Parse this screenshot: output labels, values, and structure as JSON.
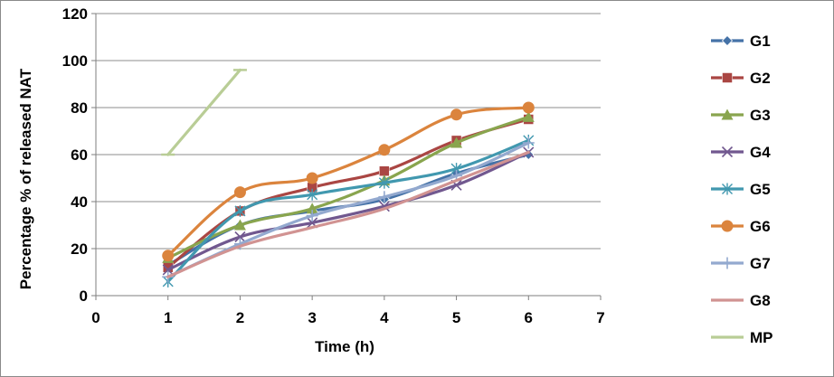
{
  "chart_data": {
    "type": "line",
    "title": "",
    "xlabel": "Time (h)",
    "ylabel": "Percentage % of released NAT",
    "xlim": [
      0,
      7
    ],
    "ylim": [
      0,
      120
    ],
    "xticks": [
      "0",
      "1",
      "2",
      "3",
      "4",
      "5",
      "6",
      "7"
    ],
    "yticks": [
      "0",
      "20",
      "40",
      "60",
      "80",
      "100",
      "120"
    ],
    "grid": "horizontal",
    "legend_position": "right",
    "series": [
      {
        "name": "G1",
        "color": "#4572A7",
        "marker": "diamond",
        "x": [
          1,
          2,
          3,
          4,
          5,
          6
        ],
        "y": [
          13,
          30,
          36,
          41,
          52,
          60
        ]
      },
      {
        "name": "G2",
        "color": "#AA4643",
        "marker": "square",
        "x": [
          1,
          2,
          3,
          4,
          5,
          6
        ],
        "y": [
          12,
          36,
          46,
          53,
          66,
          75
        ]
      },
      {
        "name": "G3",
        "color": "#89A54E",
        "marker": "triangle",
        "x": [
          1,
          2,
          3,
          4,
          5,
          6
        ],
        "y": [
          16,
          30,
          37,
          49,
          65,
          76
        ]
      },
      {
        "name": "G4",
        "color": "#71588F",
        "marker": "x",
        "x": [
          1,
          2,
          3,
          4,
          5,
          6
        ],
        "y": [
          11,
          25,
          31,
          38,
          47,
          61
        ]
      },
      {
        "name": "G5",
        "color": "#4198AF",
        "marker": "star",
        "x": [
          1,
          2,
          3,
          4,
          5,
          6
        ],
        "y": [
          6,
          36,
          43,
          48,
          54,
          66
        ]
      },
      {
        "name": "G6",
        "color": "#DB843D",
        "marker": "circle",
        "x": [
          1,
          2,
          3,
          4,
          5,
          6
        ],
        "y": [
          17,
          44,
          50,
          62,
          77,
          80
        ]
      },
      {
        "name": "G7",
        "color": "#93A9CF",
        "marker": "plus",
        "x": [
          1,
          2,
          3,
          4,
          5,
          6
        ],
        "y": [
          8,
          22,
          34,
          42,
          51,
          65
        ]
      },
      {
        "name": "G8",
        "color": "#D19392",
        "marker": "none",
        "x": [
          1,
          2,
          3,
          4,
          5,
          6
        ],
        "y": [
          8,
          21,
          29,
          37,
          49,
          61
        ]
      },
      {
        "name": "MP",
        "color": "#B9CD96",
        "marker": "dash",
        "x": [
          1,
          2
        ],
        "y": [
          60,
          96
        ]
      }
    ]
  }
}
